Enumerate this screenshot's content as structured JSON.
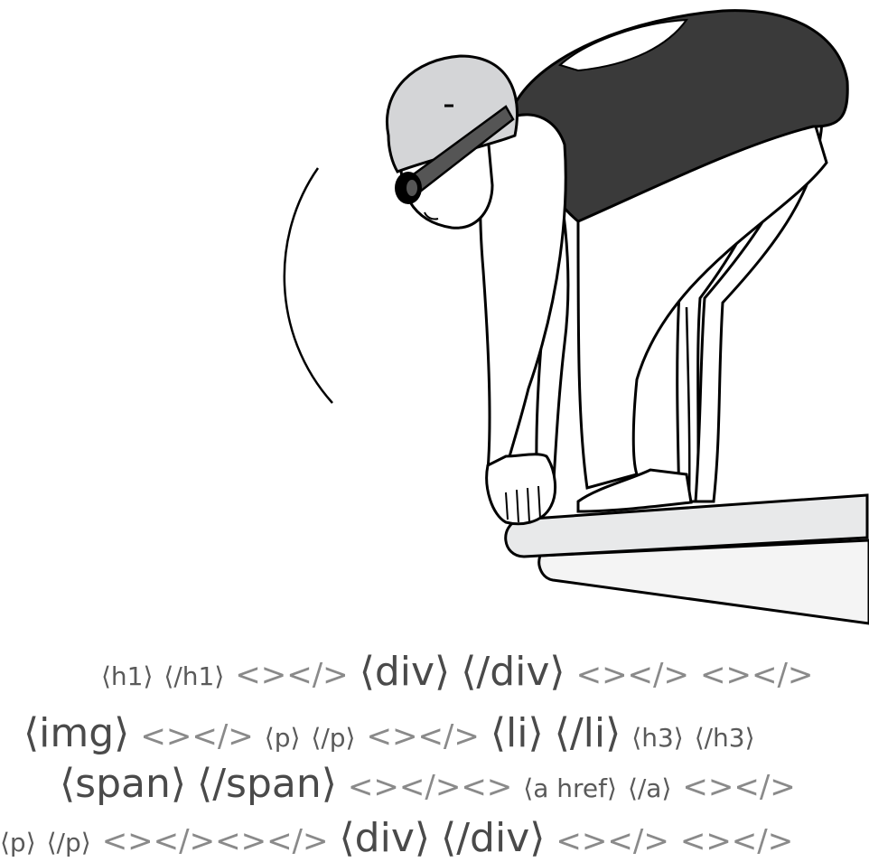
{
  "colors": {
    "outline": "#000000",
    "cap": "#d4d5d7",
    "suit": "#3a3a3a",
    "strap": "#555555",
    "board_top": "#e8e9ea",
    "board_side": "#f4f4f4",
    "code_text": "#555555"
  },
  "code_lines": [
    {
      "tags": [
        {
          "t": "⟨h1⟩",
          "s": "s"
        },
        {
          "t": "⟨/h1⟩",
          "s": "s"
        },
        {
          "t": "<></>",
          "s": "m",
          "g": true
        },
        {
          "t": "⟨div⟩",
          "s": "l"
        },
        {
          "t": "⟨/div⟩",
          "s": "l"
        },
        {
          "t": "<></>",
          "s": "m",
          "g": true
        },
        {
          "t": "<></>",
          "s": "m",
          "g": true
        }
      ]
    },
    {
      "tags": [
        {
          "t": "⟨img⟩",
          "s": "l"
        },
        {
          "t": "<></>",
          "s": "m",
          "g": true
        },
        {
          "t": "⟨p⟩",
          "s": "s"
        },
        {
          "t": "⟨/p⟩",
          "s": "s"
        },
        {
          "t": "<></>",
          "s": "m",
          "g": true
        },
        {
          "t": "⟨li⟩",
          "s": "l"
        },
        {
          "t": "⟨/li⟩",
          "s": "l"
        },
        {
          "t": "⟨h3⟩",
          "s": "s"
        },
        {
          "t": "⟨/h3⟩",
          "s": "s"
        }
      ]
    },
    {
      "tags": [
        {
          "t": "⟨span⟩",
          "s": "l"
        },
        {
          "t": "⟨/span⟩",
          "s": "l"
        },
        {
          "t": "<></><>",
          "s": "m",
          "g": true
        },
        {
          "t": "⟨a href⟩",
          "s": "s"
        },
        {
          "t": "⟨/a⟩",
          "s": "s"
        },
        {
          "t": "<></>",
          "s": "m",
          "g": true
        }
      ]
    },
    {
      "tags": [
        {
          "t": "⟨p⟩",
          "s": "s"
        },
        {
          "t": "⟨/p⟩",
          "s": "s"
        },
        {
          "t": "<></><></>",
          "s": "m",
          "g": true
        },
        {
          "t": "⟨div⟩",
          "s": "l"
        },
        {
          "t": "⟨/div⟩",
          "s": "l"
        },
        {
          "t": "<></>",
          "s": "m",
          "g": true
        },
        {
          "t": "<></>",
          "s": "m",
          "g": true
        }
      ]
    }
  ]
}
